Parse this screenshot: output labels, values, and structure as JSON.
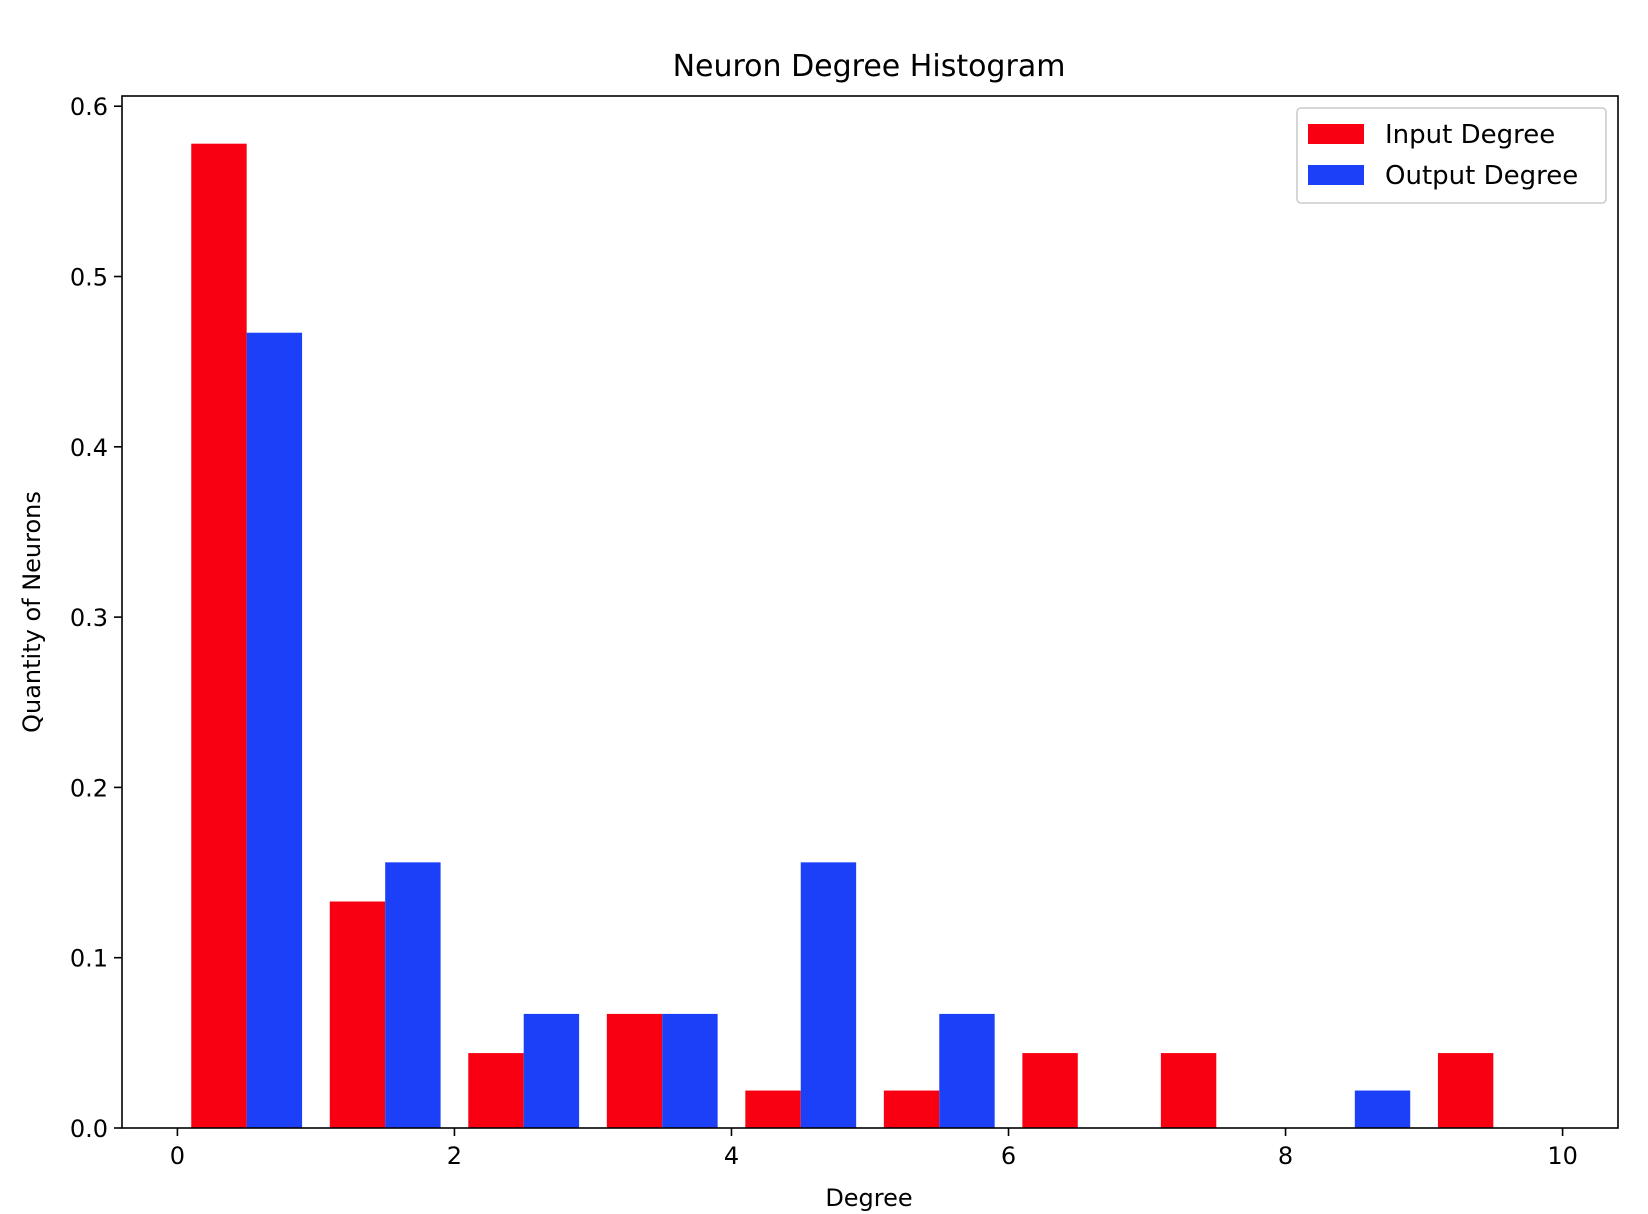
{
  "chart_data": {
    "type": "bar",
    "title": "Neuron Degree Histogram",
    "xlabel": "Degree",
    "ylabel": "Quantity of Neurons",
    "xlim": [
      -0.4,
      10.4
    ],
    "ylim": [
      0,
      0.606
    ],
    "xticks": [
      0,
      2,
      4,
      6,
      8,
      10
    ],
    "xtick_labels": [
      "0",
      "2",
      "4",
      "6",
      "8",
      "10"
    ],
    "yticks": [
      0.0,
      0.1,
      0.2,
      0.3,
      0.4,
      0.5,
      0.6
    ],
    "ytick_labels": [
      "0.0",
      "0.1",
      "0.2",
      "0.3",
      "0.4",
      "0.5",
      "0.6"
    ],
    "bin_edges": [
      0,
      1,
      2,
      3,
      4,
      5,
      6,
      7,
      8,
      9,
      10
    ],
    "grid": false,
    "legend_position": "top-right",
    "series": [
      {
        "name": "Input Degree",
        "color": "#f80012",
        "values": [
          0.578,
          0.133,
          0.044,
          0.067,
          0.022,
          0.022,
          0.044,
          0.044,
          0.0,
          0.044
        ]
      },
      {
        "name": "Output Degree",
        "color": "#1c40f8",
        "values": [
          0.467,
          0.156,
          0.067,
          0.067,
          0.156,
          0.067,
          0.0,
          0.0,
          0.022,
          0.0
        ]
      }
    ]
  }
}
